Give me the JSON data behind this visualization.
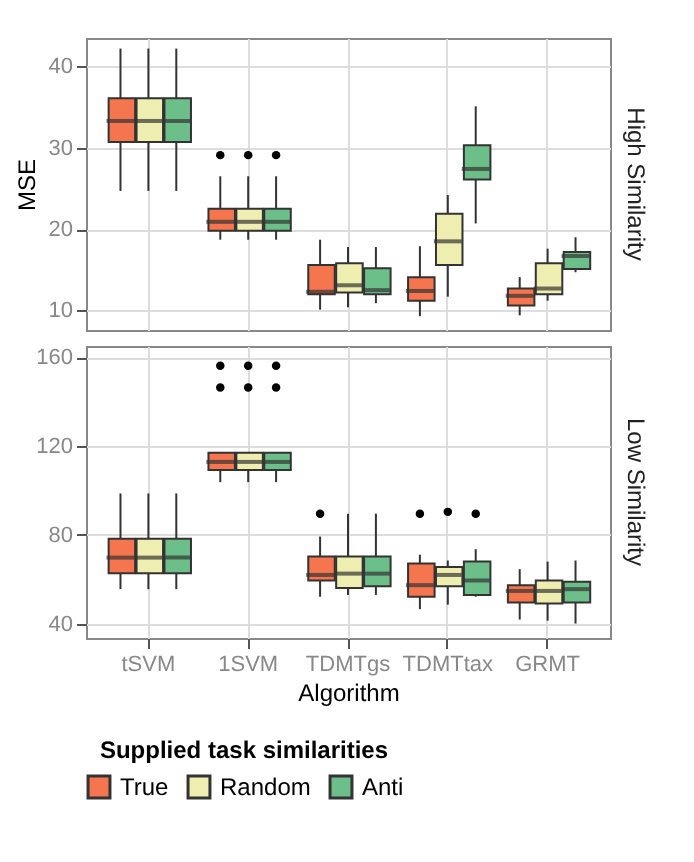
{
  "chart_data": [
    {
      "type": "box",
      "title": "High Similarity",
      "ylabel": "MSE",
      "categories": [
        null,
        null,
        null,
        null,
        null
      ],
      "ylim": [
        7.6,
        43.5
      ],
      "yticks": [
        10,
        20,
        30,
        40
      ],
      "grid": true,
      "tick_labels": "y",
      "legend": false,
      "series": [
        {
          "color": "#f4754e",
          "boxes": [
            {
              "low": 24.7,
              "q1": 30.7,
              "median": 33.3,
              "q3": 36.1,
              "high": 42.2
            },
            {
              "low": 18.7,
              "q1": 19.8,
              "median": 20.9,
              "q3": 22.5,
              "high": 26.5,
              "outliers": [
                29.1
              ]
            },
            {
              "low": 10.1,
              "q1": 12.0,
              "median": 12.3,
              "q3": 15.6,
              "high": 18.7
            },
            {
              "low": 9.3,
              "q1": 11.2,
              "median": 12.4,
              "q3": 14.1,
              "high": 17.9
            },
            {
              "low": 9.4,
              "q1": 10.6,
              "median": 11.8,
              "q3": 12.7,
              "high": 14.1
            }
          ]
        },
        {
          "color": "#eeeeb0",
          "boxes": [
            {
              "low": 24.7,
              "q1": 30.7,
              "median": 33.3,
              "q3": 36.1,
              "high": 42.2
            },
            {
              "low": 18.7,
              "q1": 19.8,
              "median": 20.9,
              "q3": 22.5,
              "high": 26.5,
              "outliers": [
                29.1
              ]
            },
            {
              "low": 10.4,
              "q1": 12.2,
              "median": 13.1,
              "q3": 15.8,
              "high": 17.8
            },
            {
              "low": 11.7,
              "q1": 15.6,
              "median": 18.5,
              "q3": 21.9,
              "high": 24.2
            },
            {
              "low": 11.2,
              "q1": 12.0,
              "median": 12.7,
              "q3": 15.8,
              "high": 17.6
            }
          ]
        },
        {
          "color": "#6dbf8a",
          "boxes": [
            {
              "low": 24.7,
              "q1": 30.7,
              "median": 33.3,
              "q3": 36.1,
              "high": 42.2
            },
            {
              "low": 18.7,
              "q1": 19.8,
              "median": 20.9,
              "q3": 22.5,
              "high": 26.5,
              "outliers": [
                29.1
              ]
            },
            {
              "low": 10.9,
              "q1": 12.0,
              "median": 12.5,
              "q3": 15.2,
              "high": 17.8
            },
            {
              "low": 20.7,
              "q1": 26.1,
              "median": 27.4,
              "q3": 30.3,
              "high": 35.1
            },
            {
              "low": 14.7,
              "q1": 15.1,
              "median": 16.7,
              "q3": 17.2,
              "high": 19.0
            }
          ]
        }
      ]
    },
    {
      "type": "box",
      "title": "Low Similarity",
      "xlabel": "Algorithm",
      "legend_title": "Supplied task similarities",
      "categories": [
        "tSVM",
        "1SVM",
        "TDMTgs",
        "TDMTtax",
        "GRMT"
      ],
      "ylim": [
        33.5,
        165
      ],
      "yticks": [
        40,
        80,
        120,
        160
      ],
      "grid": true,
      "legend": "bottom",
      "series": [
        {
          "name": "True",
          "color": "#f4754e",
          "boxes": [
            {
              "low": 55.5,
              "q1": 62.7,
              "median": 69.7,
              "q3": 78.2,
              "high": 98.6
            },
            {
              "low": 103.7,
              "q1": 109.2,
              "median": 112.8,
              "q3": 116.9,
              "high": 116.9,
              "outliers": [
                146.3,
                156.1
              ]
            },
            {
              "low": 52.1,
              "q1": 59.4,
              "median": 61.9,
              "q3": 70.2,
              "high": 79.2,
              "outliers": [
                89.5
              ]
            },
            {
              "low": 46.5,
              "q1": 52.1,
              "median": 57.3,
              "q3": 67.1,
              "high": 71.0,
              "outliers": [
                89.5
              ]
            },
            {
              "low": 41.8,
              "q1": 49.5,
              "median": 54.7,
              "q3": 57.3,
              "high": 64.5
            }
          ]
        },
        {
          "name": "Random",
          "color": "#eeeeb0",
          "boxes": [
            {
              "low": 55.5,
              "q1": 62.7,
              "median": 69.7,
              "q3": 78.2,
              "high": 98.6
            },
            {
              "low": 103.7,
              "q1": 109.2,
              "median": 112.8,
              "q3": 116.9,
              "high": 116.9,
              "outliers": [
                146.3,
                156.1
              ]
            },
            {
              "low": 52.9,
              "q1": 56.0,
              "median": 62.5,
              "q3": 70.2,
              "high": 89.5
            },
            {
              "low": 48.5,
              "q1": 56.8,
              "median": 61.9,
              "q3": 65.5,
              "high": 68.4,
              "outliers": [
                90.3
              ]
            },
            {
              "low": 41.3,
              "q1": 49.0,
              "median": 54.7,
              "q3": 59.4,
              "high": 67.9
            }
          ]
        },
        {
          "name": "Anti",
          "color": "#6dbf8a",
          "boxes": [
            {
              "low": 55.5,
              "q1": 62.7,
              "median": 69.7,
              "q3": 78.2,
              "high": 98.6
            },
            {
              "low": 103.7,
              "q1": 109.2,
              "median": 112.8,
              "q3": 116.9,
              "high": 116.9,
              "outliers": [
                146.3,
                156.1
              ]
            },
            {
              "low": 52.9,
              "q1": 56.8,
              "median": 62.5,
              "q3": 70.2,
              "high": 89.5
            },
            {
              "low": 52.1,
              "q1": 52.9,
              "median": 59.4,
              "q3": 67.9,
              "high": 73.5,
              "outliers": [
                89.5
              ]
            },
            {
              "low": 40.0,
              "q1": 49.5,
              "median": 55.5,
              "q3": 58.8,
              "high": 68.4
            }
          ]
        }
      ]
    }
  ]
}
